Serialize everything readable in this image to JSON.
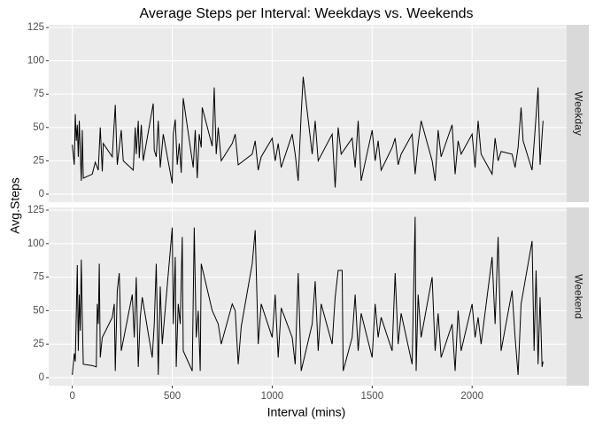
{
  "chart_data": {
    "type": "line",
    "title": "Average Steps per Interval: Weekdays vs. Weekends",
    "xlabel": "Interval (mins)",
    "ylabel": "Avg.Steps",
    "xlim": [
      -118,
      2473
    ],
    "xticks": [
      0,
      500,
      1000,
      1500,
      2000
    ],
    "ylim": [
      -6,
      127
    ],
    "yticks": [
      0,
      25,
      50,
      75,
      100,
      125
    ],
    "grid": true,
    "series": [
      {
        "name": "Weekday",
        "color": "#000000",
        "x": [
          0,
          10,
          15,
          20,
          25,
          30,
          35,
          45,
          50,
          55,
          100,
          115,
          130,
          140,
          150,
          155,
          200,
          215,
          225,
          245,
          255,
          305,
          315,
          320,
          330,
          335,
          345,
          355,
          405,
          410,
          420,
          430,
          440,
          455,
          500,
          505,
          515,
          525,
          535,
          545,
          555,
          605,
          615,
          625,
          635,
          645,
          650,
          700,
          710,
          720,
          730,
          745,
          800,
          815,
          830,
          900,
          915,
          930,
          945,
          1000,
          1015,
          1030,
          1045,
          1100,
          1115,
          1130,
          1145,
          1155,
          1200,
          1215,
          1230,
          1300,
          1315,
          1330,
          1345,
          1400,
          1415,
          1430,
          1445,
          1500,
          1515,
          1530,
          1545,
          1600,
          1615,
          1630,
          1645,
          1700,
          1715,
          1730,
          1745,
          1800,
          1815,
          1830,
          1845,
          1900,
          1915,
          1930,
          1945,
          2000,
          2015,
          2030,
          2045,
          2100,
          2115,
          2130,
          2145,
          2200,
          2215,
          2230,
          2245,
          2255,
          2300,
          2315,
          2330,
          2340,
          2355
        ],
        "values": [
          37,
          22,
          60,
          40,
          52,
          28,
          55,
          10,
          48,
          12,
          15,
          24,
          18,
          50,
          17,
          38,
          28,
          67,
          22,
          48,
          25,
          18,
          50,
          30,
          55,
          27,
          52,
          25,
          68,
          33,
          28,
          55,
          20,
          45,
          8,
          45,
          56,
          22,
          38,
          16,
          72,
          20,
          48,
          12,
          45,
          35,
          65,
          36,
          80,
          30,
          50,
          25,
          38,
          45,
          22,
          30,
          40,
          18,
          28,
          42,
          25,
          38,
          20,
          45,
          30,
          10,
          60,
          88,
          30,
          55,
          25,
          45,
          5,
          50,
          30,
          42,
          20,
          55,
          10,
          48,
          25,
          40,
          18,
          35,
          42,
          22,
          30,
          45,
          15,
          38,
          55,
          25,
          10,
          48,
          28,
          52,
          15,
          40,
          30,
          45,
          20,
          55,
          30,
          15,
          42,
          25,
          32,
          30,
          20,
          35,
          65,
          40,
          18,
          48,
          80,
          22,
          55
        ]
      },
      {
        "name": "Weekend",
        "color": "#000000",
        "x": [
          0,
          10,
          15,
          25,
          30,
          35,
          40,
          45,
          50,
          55,
          100,
          120,
          125,
          130,
          135,
          140,
          150,
          200,
          210,
          215,
          225,
          235,
          245,
          300,
          310,
          320,
          330,
          340,
          350,
          400,
          410,
          420,
          430,
          440,
          450,
          500,
          505,
          515,
          520,
          530,
          540,
          550,
          555,
          600,
          610,
          620,
          630,
          640,
          645,
          700,
          730,
          745,
          800,
          815,
          830,
          845,
          900,
          915,
          930,
          945,
          1000,
          1015,
          1030,
          1045,
          1100,
          1115,
          1130,
          1145,
          1200,
          1215,
          1230,
          1245,
          1300,
          1315,
          1330,
          1340,
          1345,
          1350,
          1355,
          1400,
          1415,
          1430,
          1445,
          1500,
          1515,
          1530,
          1545,
          1600,
          1615,
          1630,
          1645,
          1700,
          1715,
          1720,
          1730,
          1745,
          1800,
          1815,
          1830,
          1845,
          1900,
          1915,
          1930,
          1945,
          2000,
          2015,
          2030,
          2045,
          2100,
          2115,
          2130,
          2145,
          2200,
          2215,
          2230,
          2245,
          2300,
          2310,
          2320,
          2330,
          2340,
          2350,
          2355
        ],
        "values": [
          2,
          18,
          12,
          84,
          20,
          62,
          35,
          88,
          45,
          10,
          9,
          8,
          55,
          40,
          85,
          15,
          30,
          45,
          55,
          5,
          65,
          78,
          20,
          62,
          30,
          75,
          8,
          45,
          60,
          15,
          40,
          85,
          2,
          68,
          25,
          112,
          40,
          90,
          8,
          55,
          40,
          105,
          20,
          5,
          112,
          30,
          50,
          5,
          85,
          50,
          40,
          25,
          55,
          50,
          10,
          38,
          85,
          110,
          25,
          55,
          30,
          62,
          15,
          52,
          30,
          10,
          78,
          5,
          40,
          72,
          20,
          55,
          25,
          60,
          80,
          80,
          80,
          80,
          5,
          30,
          62,
          20,
          48,
          15,
          55,
          30,
          45,
          20,
          78,
          25,
          48,
          10,
          120,
          5,
          62,
          30,
          75,
          20,
          48,
          15,
          40,
          5,
          50,
          20,
          55,
          30,
          45,
          25,
          90,
          40,
          105,
          20,
          65,
          30,
          2,
          55,
          102,
          20,
          80,
          10,
          60,
          8,
          12
        ]
      }
    ]
  }
}
